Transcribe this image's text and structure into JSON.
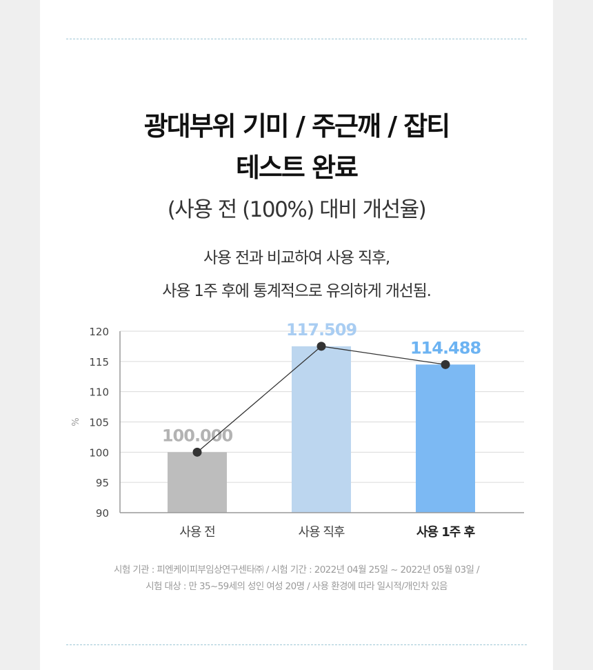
{
  "heading": {
    "line1": "광대부위 기미 / 주근깨 / 잡티",
    "line2": "테스트 완료",
    "subtitle": "(사용 전 (100%) 대비 개선율)"
  },
  "description": {
    "line1": "사용 전과 비교하여 사용 직후,",
    "line2": "사용 1주 후에 통계적으로 유의하게 개선됨."
  },
  "chart_data": {
    "type": "bar",
    "categories": [
      "사용 전",
      "사용 직후",
      "사용 1주 후"
    ],
    "values": [
      100.0,
      117.509,
      114.488
    ],
    "value_labels": [
      "100.000",
      "117.509",
      "114.488"
    ],
    "ylabel": "%",
    "ylim": [
      90,
      120
    ],
    "yticks": [
      120,
      115,
      110,
      105,
      100,
      95,
      90
    ],
    "grid": true,
    "line_overlay": true,
    "colors": [
      "#bdbdbd",
      "#bcd6ef",
      "#7cb9f3"
    ],
    "label_colors": [
      "#b3b3b3",
      "#a9cdf2",
      "#6cb3f2"
    ],
    "highlight_category_index": 2
  },
  "footnote": {
    "line1": "시험 기관 : 피엔케이피부임상연구센타㈜ / 시험 기간 : 2022년 04월 25일 ~ 2022년 05월 03일 /",
    "line2": "시험 대상 : 만 35~59세의 성인 여성 20명 / 사용 환경에 따라 일시적/개인차 있음"
  }
}
